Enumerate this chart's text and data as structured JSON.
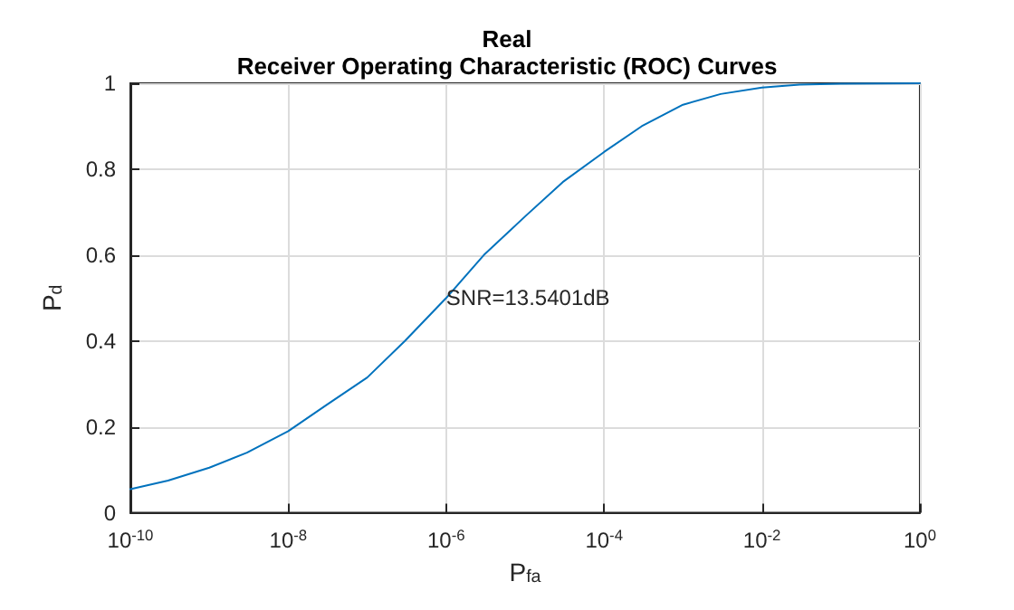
{
  "chart_data": {
    "type": "line",
    "title": "Real",
    "subtitle": "Receiver Operating Characteristic (ROC) Curves",
    "xlabel": "P$_{fa}$",
    "ylabel": "P$_{d}$",
    "log": "x",
    "grid": true,
    "marker": "none",
    "line_style": "solid",
    "x": [
      1e-10,
      3e-10,
      1e-09,
      3e-09,
      1e-08,
      3e-08,
      1e-07,
      3e-07,
      1e-06,
      3e-06,
      1e-05,
      3e-05,
      0.0001,
      0.0003,
      0.001,
      0.003,
      0.01,
      0.03,
      0.1,
      1
    ],
    "series": [
      {
        "color": "#0072bd",
        "values": [
          0.055,
          0.075,
          0.105,
          0.14,
          0.19,
          0.25,
          0.315,
          0.4,
          0.5,
          0.6,
          0.69,
          0.77,
          0.84,
          0.9,
          0.95,
          0.975,
          0.99,
          0.997,
          0.999,
          1
        ]
      }
    ],
    "xlim": [
      1e-10,
      1
    ],
    "xticks": [
      {
        "value": 1e-10,
        "label": "10$^{-10}$"
      },
      {
        "value": 1e-08,
        "label": "10$^{-8}$"
      },
      {
        "value": 1e-06,
        "label": "10$^{-6}$"
      },
      {
        "value": 0.0001,
        "label": "10$^{-4}$"
      },
      {
        "value": 0.01,
        "label": "10$^{-2}$"
      },
      {
        "value": 1,
        "label": "10$^{0}$"
      }
    ],
    "ylim": [
      0,
      1
    ],
    "yticks": [
      0,
      0.2,
      0.4,
      0.6,
      0.8,
      1
    ],
    "annotations": [
      {
        "text": "SNR=13.5401dB",
        "x": 1e-06,
        "y": 0.5
      }
    ]
  }
}
